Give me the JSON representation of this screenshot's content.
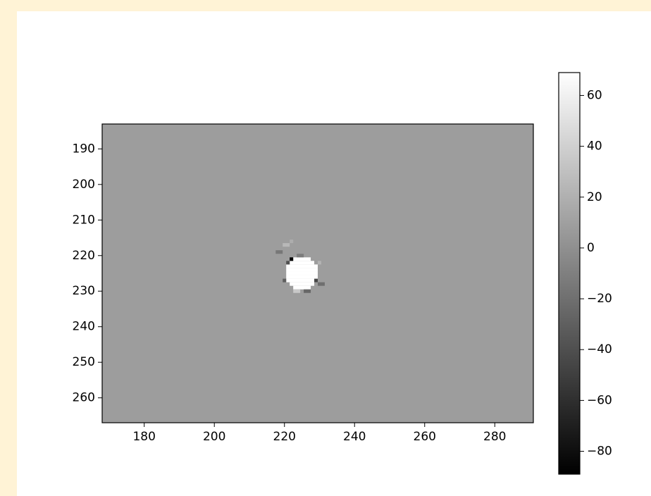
{
  "chart_data": {
    "type": "heatmap",
    "xlim": [
      168,
      291
    ],
    "ylim": [
      267,
      183
    ],
    "xticks": [
      180,
      200,
      220,
      240,
      260,
      280
    ],
    "yticks": [
      190,
      200,
      210,
      220,
      230,
      240,
      250,
      260
    ],
    "cmap": "gray",
    "background_value": 8,
    "pixels": [
      {
        "x": [
          223,
          227
        ],
        "y": 221,
        "value": 69
      },
      {
        "x": [
          222,
          228
        ],
        "y": 222,
        "value": 69
      },
      {
        "x": [
          221,
          229
        ],
        "y": 223,
        "value": 69
      },
      {
        "x": [
          221,
          229
        ],
        "y": 224,
        "value": 69
      },
      {
        "x": [
          221,
          229
        ],
        "y": 225,
        "value": 69
      },
      {
        "x": [
          221,
          229
        ],
        "y": 226,
        "value": 69
      },
      {
        "x": [
          221,
          229
        ],
        "y": 227,
        "value": 69
      },
      {
        "x": [
          222,
          228
        ],
        "y": 228,
        "value": 69
      },
      {
        "x": [
          223,
          227
        ],
        "y": 229,
        "value": 69
      },
      {
        "x": [
          222,
          222
        ],
        "y": 221,
        "value": -89
      },
      {
        "x": [
          221,
          221
        ],
        "y": 222,
        "value": -40
      },
      {
        "x": [
          229,
          229
        ],
        "y": 227,
        "value": -45
      },
      {
        "x": [
          220,
          220
        ],
        "y": 227,
        "value": -30
      },
      {
        "x": [
          226,
          227
        ],
        "y": 230,
        "value": -25
      },
      {
        "x": [
          223,
          224
        ],
        "y": 230,
        "value": 35
      },
      {
        "x": [
          220,
          221
        ],
        "y": 217,
        "value": 25
      },
      {
        "x": [
          222,
          222
        ],
        "y": 216,
        "value": 18
      },
      {
        "x": [
          218,
          219
        ],
        "y": 219,
        "value": -15
      },
      {
        "x": [
          230,
          230
        ],
        "y": 222,
        "value": 22
      },
      {
        "x": [
          230,
          231
        ],
        "y": 228,
        "value": -20
      },
      {
        "x": [
          224,
          225
        ],
        "y": 220,
        "value": -12
      }
    ],
    "colorbar": {
      "clim": [
        -89,
        69
      ],
      "ticks": [
        -80,
        -60,
        -40,
        -20,
        0,
        20,
        40,
        60
      ]
    }
  }
}
